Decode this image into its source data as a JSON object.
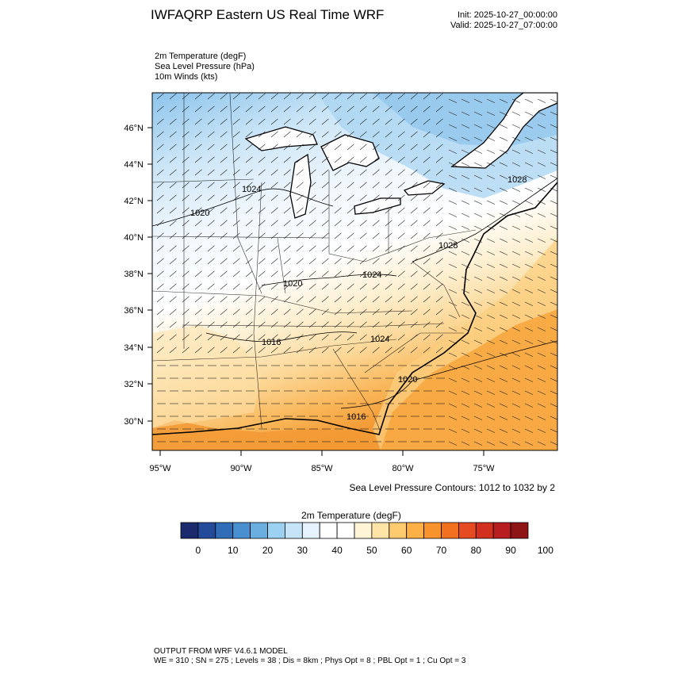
{
  "header": {
    "title": "IWFAQRP Eastern US Real Time WRF",
    "init": "Init: 2025-10-27_00:00:00",
    "valid": "Valid: 2025-10-27_07:00:00"
  },
  "fields": [
    "2m Temperature   (degF)",
    "Sea Level Pressure   (hPa)",
    "10m Winds   (kts)"
  ],
  "axes": {
    "lat_labels": [
      "46°N",
      "44°N",
      "42°N",
      "40°N",
      "38°N",
      "36°N",
      "34°N",
      "32°N",
      "30°N"
    ],
    "lon_labels": [
      "95°W",
      "90°W",
      "85°W",
      "80°W",
      "75°W"
    ]
  },
  "pressure_labels": [
    "1024",
    "1020",
    "1020",
    "1024",
    "1028",
    "1028",
    "1016",
    "1024",
    "1020",
    "1016"
  ],
  "contour_note": "Sea Level Pressure Contours: 1012 to 1032 by 2",
  "colorbar": {
    "title": "2m Temperature  (degF)",
    "labels": [
      "0",
      "10",
      "20",
      "30",
      "40",
      "50",
      "60",
      "70",
      "80",
      "90",
      "100"
    ],
    "colors": [
      "#1a2a6c",
      "#234b99",
      "#2f6db8",
      "#4a90d0",
      "#6aaee0",
      "#9cd1f2",
      "#c5e4f7",
      "#e6f3fc",
      "#ffffff",
      "#ffffff",
      "#fff4d6",
      "#ffe4a8",
      "#ffcb6e",
      "#fdb045",
      "#f7922c",
      "#f2711e",
      "#e54a20",
      "#d32f1e",
      "#b81d1f",
      "#8f1416"
    ]
  },
  "footer": {
    "line1": "OUTPUT FROM WRF V4.6.1 MODEL",
    "line2": "WE = 310 ; SN = 275 ; Levels = 38 ; Dis = 8km ; Phys Opt = 8 ; PBL Opt = 1 ; Cu Opt = 3"
  }
}
